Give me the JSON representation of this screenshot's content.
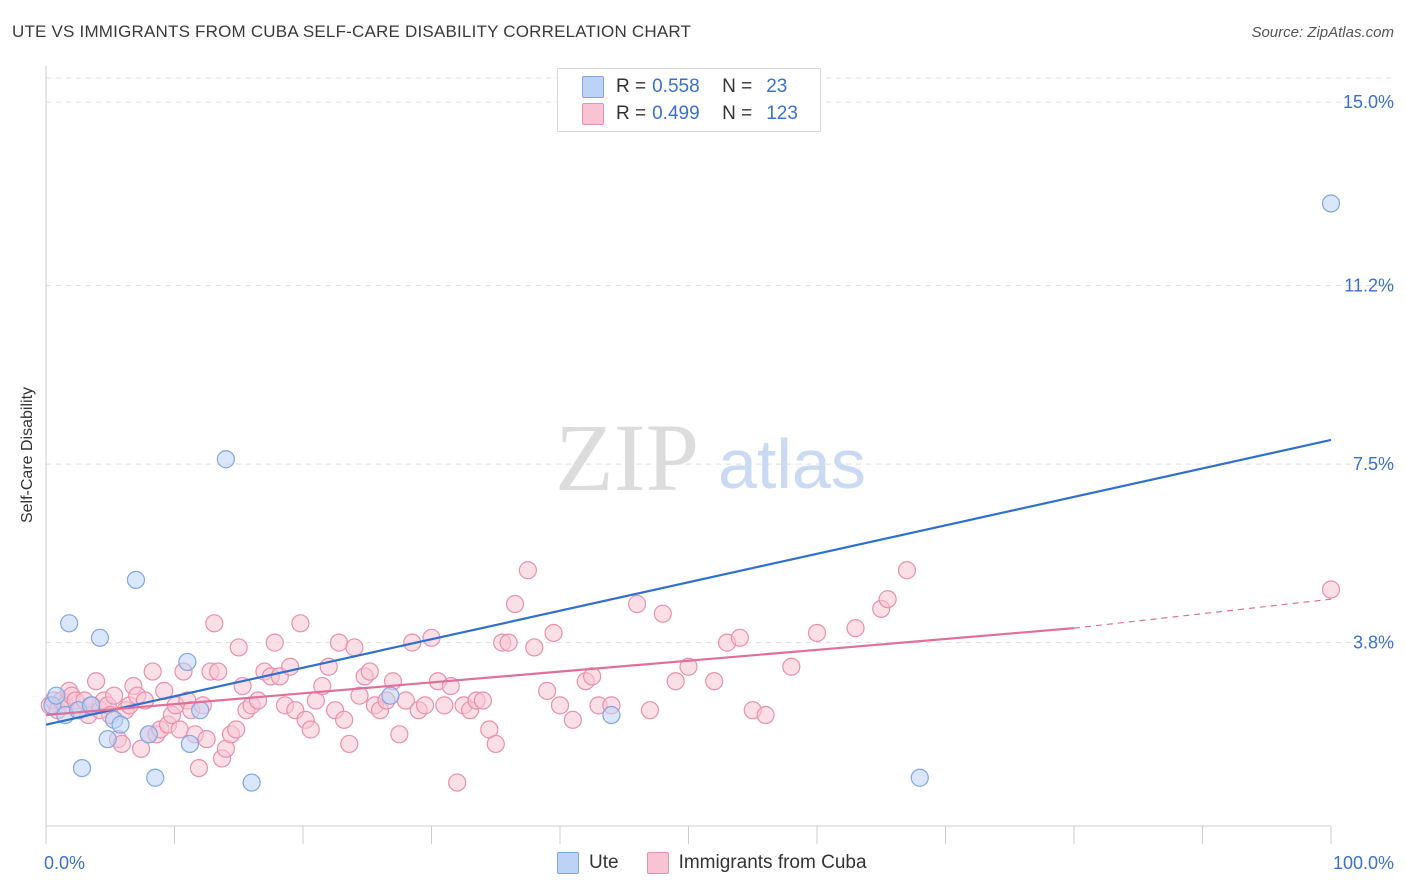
{
  "title": "UTE VS IMMIGRANTS FROM CUBA SELF-CARE DISABILITY CORRELATION CHART",
  "source": "Source: ZipAtlas.com",
  "watermark": {
    "zip": "ZIP",
    "atlas": "atlas"
  },
  "colors": {
    "ute_fill": "#bcd3f5",
    "ute_stroke": "#7fa6e3",
    "ute_line": "#2f6fce",
    "cuba_fill": "#f8c4d4",
    "cuba_stroke": "#ea8fac",
    "cuba_line": "#e0709a",
    "tick": "#3b6fd6",
    "grid": "#dddddd"
  },
  "legend": {
    "rows": [
      {
        "r_label": "R =",
        "r_value": "0.558",
        "n_label": "N =",
        "n_value": "23"
      },
      {
        "r_label": "R =",
        "r_value": "0.499",
        "n_label": "N =",
        "n_value": "123"
      }
    ]
  },
  "bottom_legend": {
    "ute": "Ute",
    "cuba": "Immigrants from Cuba"
  },
  "chart_data": {
    "type": "scatter",
    "title": "UTE VS IMMIGRANTS FROM CUBA SELF-CARE DISABILITY CORRELATION CHART",
    "xlabel": "",
    "ylabel": "Self-Care Disability",
    "xlim": [
      0,
      100
    ],
    "ylim": [
      0,
      15.5
    ],
    "x_tick_labels": [
      "0.0%",
      "100.0%"
    ],
    "y_ticks": [
      3.8,
      7.5,
      11.2,
      15.0
    ],
    "y_tick_labels": [
      "3.8%",
      "7.5%",
      "11.2%",
      "15.0%"
    ],
    "grid": true,
    "legend_position": "top-center",
    "series": [
      {
        "name": "Ute",
        "r": 0.558,
        "n": 23,
        "trend": {
          "x0": 0,
          "y0": 2.1,
          "x1": 100,
          "y1": 8.0
        },
        "points": [
          [
            0.5,
            2.5
          ],
          [
            0.8,
            2.7
          ],
          [
            1.5,
            2.3
          ],
          [
            1.8,
            4.2
          ],
          [
            2.5,
            2.4
          ],
          [
            2.8,
            1.2
          ],
          [
            3.5,
            2.5
          ],
          [
            4.2,
            3.9
          ],
          [
            4.8,
            1.8
          ],
          [
            5.3,
            2.2
          ],
          [
            5.8,
            2.1
          ],
          [
            7.0,
            5.1
          ],
          [
            8.0,
            1.9
          ],
          [
            8.5,
            1.0
          ],
          [
            11.0,
            3.4
          ],
          [
            11.2,
            1.7
          ],
          [
            12.0,
            2.4
          ],
          [
            14.0,
            7.6
          ],
          [
            16.0,
            0.9
          ],
          [
            26.8,
            2.7
          ],
          [
            44.0,
            2.3
          ],
          [
            68.0,
            1.0
          ],
          [
            100.0,
            12.9
          ]
        ]
      },
      {
        "name": "Immigrants from Cuba",
        "r": 0.499,
        "n": 123,
        "trend": {
          "x0": 0,
          "y0": 2.3,
          "x1": 80,
          "y1": 4.1
        },
        "trend_dashed": {
          "x0": 80,
          "y0": 4.1,
          "x1": 100,
          "y1": 4.7
        },
        "points": [
          [
            0.3,
            2.5
          ],
          [
            0.6,
            2.6
          ],
          [
            0.9,
            2.4
          ],
          [
            1.2,
            2.6
          ],
          [
            1.5,
            2.5
          ],
          [
            1.8,
            2.8
          ],
          [
            2.0,
            2.7
          ],
          [
            2.3,
            2.6
          ],
          [
            2.6,
            2.4
          ],
          [
            3.0,
            2.6
          ],
          [
            3.3,
            2.3
          ],
          [
            3.6,
            2.5
          ],
          [
            3.9,
            3.0
          ],
          [
            4.2,
            2.4
          ],
          [
            4.5,
            2.6
          ],
          [
            4.8,
            2.5
          ],
          [
            5.0,
            2.3
          ],
          [
            5.3,
            2.7
          ],
          [
            5.6,
            1.8
          ],
          [
            5.9,
            1.7
          ],
          [
            6.2,
            2.4
          ],
          [
            6.5,
            2.5
          ],
          [
            6.8,
            2.9
          ],
          [
            7.1,
            2.7
          ],
          [
            7.4,
            1.6
          ],
          [
            7.7,
            2.6
          ],
          [
            8.0,
            1.9
          ],
          [
            8.3,
            3.2
          ],
          [
            8.6,
            1.9
          ],
          [
            8.9,
            2.0
          ],
          [
            9.2,
            2.8
          ],
          [
            9.5,
            2.1
          ],
          [
            9.8,
            2.3
          ],
          [
            10.1,
            2.5
          ],
          [
            10.4,
            2.0
          ],
          [
            10.7,
            3.2
          ],
          [
            11.0,
            2.6
          ],
          [
            11.3,
            2.4
          ],
          [
            11.6,
            1.9
          ],
          [
            11.9,
            1.2
          ],
          [
            12.2,
            2.5
          ],
          [
            12.5,
            1.8
          ],
          [
            12.8,
            3.2
          ],
          [
            13.1,
            4.2
          ],
          [
            13.4,
            3.2
          ],
          [
            13.7,
            1.4
          ],
          [
            14.0,
            1.6
          ],
          [
            14.4,
            1.9
          ],
          [
            14.8,
            2.0
          ],
          [
            15.0,
            3.7
          ],
          [
            15.3,
            2.9
          ],
          [
            15.6,
            2.4
          ],
          [
            16.0,
            2.5
          ],
          [
            16.5,
            2.6
          ],
          [
            17.0,
            3.2
          ],
          [
            17.5,
            3.1
          ],
          [
            17.8,
            3.8
          ],
          [
            18.2,
            3.1
          ],
          [
            18.6,
            2.5
          ],
          [
            19.0,
            3.3
          ],
          [
            19.4,
            2.4
          ],
          [
            19.8,
            4.2
          ],
          [
            20.2,
            2.2
          ],
          [
            20.6,
            2.0
          ],
          [
            21.0,
            2.6
          ],
          [
            21.5,
            2.9
          ],
          [
            22.0,
            3.3
          ],
          [
            22.5,
            2.4
          ],
          [
            22.8,
            3.8
          ],
          [
            23.2,
            2.2
          ],
          [
            23.6,
            1.7
          ],
          [
            24.0,
            3.7
          ],
          [
            24.4,
            2.7
          ],
          [
            24.8,
            3.1
          ],
          [
            25.2,
            3.2
          ],
          [
            25.6,
            2.5
          ],
          [
            26.0,
            2.4
          ],
          [
            26.5,
            2.6
          ],
          [
            27.0,
            3.0
          ],
          [
            27.5,
            1.9
          ],
          [
            28.0,
            2.6
          ],
          [
            28.5,
            3.8
          ],
          [
            29.0,
            2.4
          ],
          [
            29.5,
            2.5
          ],
          [
            30.0,
            3.9
          ],
          [
            30.5,
            3.0
          ],
          [
            31.0,
            2.5
          ],
          [
            31.5,
            2.9
          ],
          [
            32.0,
            0.9
          ],
          [
            32.5,
            2.5
          ],
          [
            33.0,
            2.4
          ],
          [
            33.5,
            2.6
          ],
          [
            34.0,
            2.6
          ],
          [
            34.5,
            2.0
          ],
          [
            35.0,
            1.7
          ],
          [
            35.5,
            3.8
          ],
          [
            36.0,
            3.8
          ],
          [
            36.5,
            4.6
          ],
          [
            37.5,
            5.3
          ],
          [
            38.0,
            3.7
          ],
          [
            39.0,
            2.8
          ],
          [
            39.5,
            4.0
          ],
          [
            40.0,
            2.5
          ],
          [
            41.0,
            2.2
          ],
          [
            42.0,
            3.0
          ],
          [
            42.5,
            3.1
          ],
          [
            43.0,
            2.5
          ],
          [
            44.0,
            2.5
          ],
          [
            46.0,
            4.6
          ],
          [
            47.0,
            2.4
          ],
          [
            48.0,
            4.4
          ],
          [
            49.0,
            3.0
          ],
          [
            50.0,
            3.3
          ],
          [
            52.0,
            3.0
          ],
          [
            53.0,
            3.8
          ],
          [
            54.0,
            3.9
          ],
          [
            55.0,
            2.4
          ],
          [
            56.0,
            2.3
          ],
          [
            58.0,
            3.3
          ],
          [
            60.0,
            4.0
          ],
          [
            63.0,
            4.1
          ],
          [
            65.0,
            4.5
          ],
          [
            65.5,
            4.7
          ],
          [
            67.0,
            5.3
          ],
          [
            100.0,
            4.9
          ]
        ]
      }
    ]
  }
}
